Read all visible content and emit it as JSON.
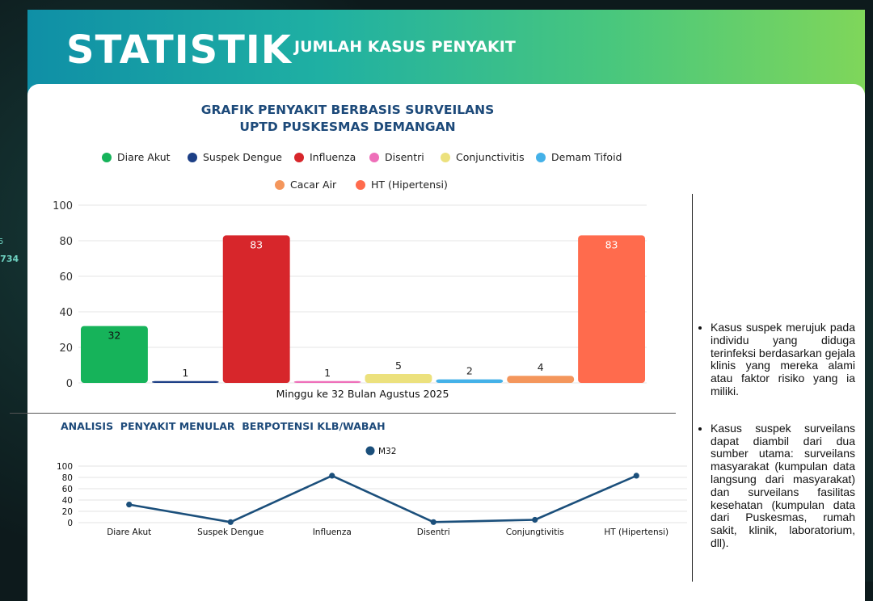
{
  "header": {
    "title": "STATISTIK",
    "subtitle": "JUMLAH KASUS PENYAKIT"
  },
  "background": {
    "number_fragment": ".734",
    "number_fragment_2": "5"
  },
  "chart_data": [
    {
      "type": "bar",
      "title": "GRAFIK PENYAKIT BERBASIS SURVEILANS",
      "subtitle": "UPTD PUSKESMAS DEMANGAN",
      "xlabel": "Minggu ke 32 Bulan Agustus 2025",
      "ylabel": "",
      "ylim": [
        0,
        100
      ],
      "yticks": [
        0,
        20,
        40,
        60,
        80,
        100
      ],
      "grid": true,
      "legend_position": "top",
      "series": [
        {
          "name": "Diare Akut",
          "value": 32,
          "color": "#16b35a"
        },
        {
          "name": "Suspek Dengue",
          "value": 1,
          "color": "#1c3f86"
        },
        {
          "name": "Influenza",
          "value": 83,
          "color": "#d7262b"
        },
        {
          "name": "Disentri",
          "value": 1,
          "color": "#ee6fb9"
        },
        {
          "name": "Conjunctivitis",
          "value": 5,
          "color": "#ece17d"
        },
        {
          "name": "Demam Tifoid",
          "value": 2,
          "color": "#44b1e8"
        },
        {
          "name": "Cacar Air",
          "value": 4,
          "color": "#f4965c"
        },
        {
          "name": "HT (Hipertensi)",
          "value": 83,
          "color": "#ff6b4d"
        }
      ]
    },
    {
      "type": "line",
      "title": "ANALISIS  PENYAKIT MENULAR  BERPOTENSI KLB/WABAH",
      "categories": [
        "Diare Akut",
        "Suspek Dengue",
        "Influenza",
        "Disentri",
        "Conjungtivitis",
        "HT (Hipertensi)"
      ],
      "series": [
        {
          "name": "M32",
          "values": [
            32,
            1,
            83,
            1,
            5,
            83
          ],
          "color": "#1b4f7b"
        }
      ],
      "ylim": [
        0,
        100
      ],
      "yticks": [
        0,
        20,
        40,
        60,
        80,
        100
      ],
      "grid": true,
      "legend_position": "top"
    }
  ],
  "notes": [
    "Kasus suspek merujuk pada individu yang diduga terinfeksi berdasarkan gejala klinis yang mereka alami atau faktor risiko yang ia miliki.",
    "Kasus suspek surveilans dapat diambil dari dua sumber utama: surveilans masyarakat (kumpulan data langsung dari masyarakat) dan surveilans fasilitas kesehatan (kumpulan data dari Puskesmas, rumah sakit, klinik, laboratorium, dll)."
  ]
}
